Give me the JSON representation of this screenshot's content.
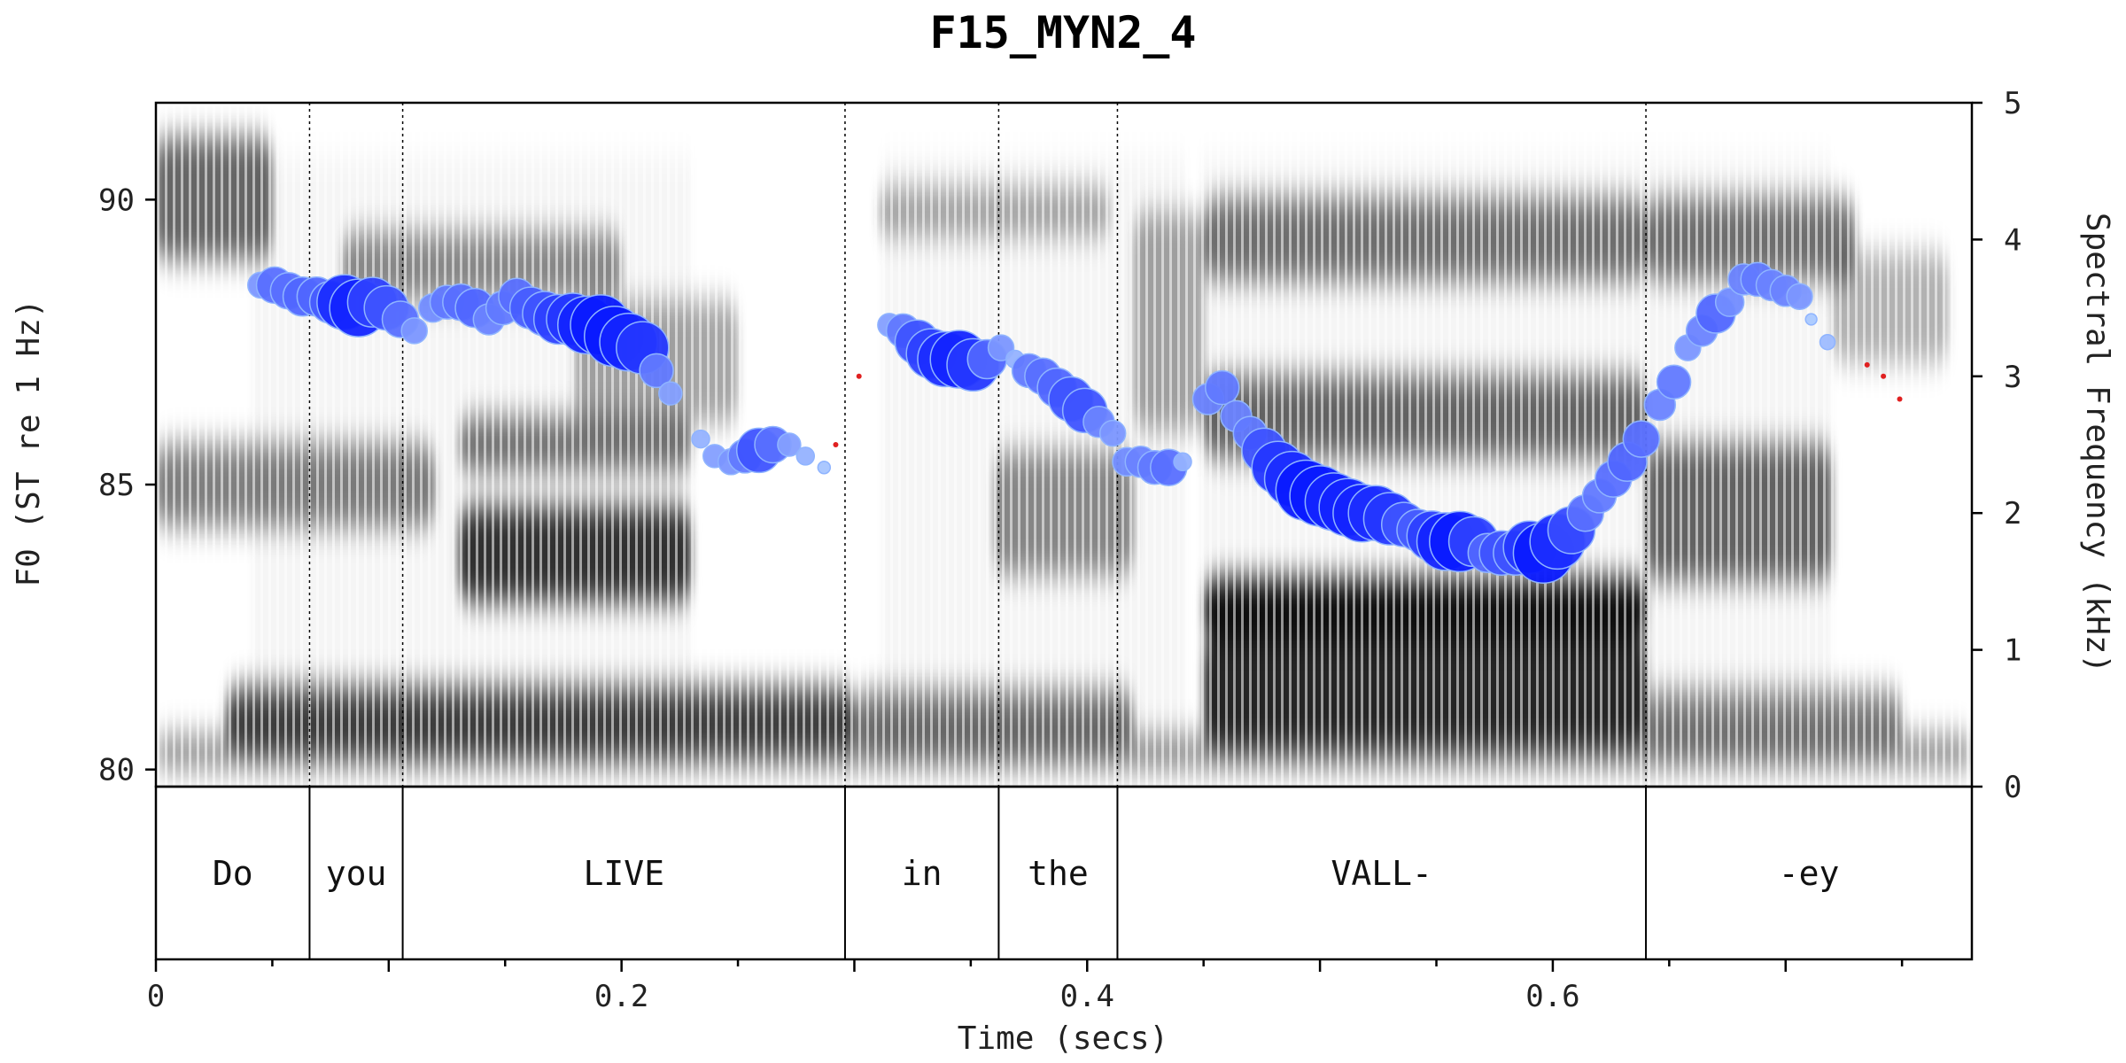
{
  "chart_data": {
    "type": "scatter",
    "title": "F15_MYN2_4",
    "xlabel": "Time (secs)",
    "ylabel_left": "F0 (ST re 1 Hz)",
    "ylabel_right": "Spectral Frequency (kHz)",
    "xlim": [
      0,
      0.78
    ],
    "ylim_left": [
      79.7,
      91.7
    ],
    "ylim_right": [
      0,
      5
    ],
    "x_ticks": [
      {
        "value": 0,
        "label": "0"
      },
      {
        "value": 0.2,
        "label": "0.2"
      },
      {
        "value": 0.4,
        "label": "0.4"
      },
      {
        "value": 0.6,
        "label": "0.6"
      }
    ],
    "y_ticks_left": [
      {
        "value": 80,
        "label": "80"
      },
      {
        "value": 85,
        "label": "85"
      },
      {
        "value": 90,
        "label": "90"
      }
    ],
    "y_ticks_right": [
      {
        "value": 0,
        "label": "0"
      },
      {
        "value": 1,
        "label": "1"
      },
      {
        "value": 2,
        "label": "2"
      },
      {
        "value": 3,
        "label": "3"
      },
      {
        "value": 4,
        "label": "4"
      },
      {
        "value": 5,
        "label": "5"
      }
    ],
    "words": [
      {
        "label": "Do",
        "start": 0.0,
        "end": 0.066
      },
      {
        "label": "you",
        "start": 0.066,
        "end": 0.106
      },
      {
        "label": "LIVE",
        "start": 0.106,
        "end": 0.296
      },
      {
        "label": "in",
        "start": 0.296,
        "end": 0.362
      },
      {
        "label": "the",
        "start": 0.362,
        "end": 0.413
      },
      {
        "label": "VALL-",
        "start": 0.413,
        "end": 0.64
      },
      {
        "label": "-ey",
        "start": 0.64,
        "end": 0.78
      }
    ],
    "colors": {
      "strong": "#0a1aff",
      "weak": "#b8d8ff",
      "unvoiced": "#e02020",
      "spectrogram": "#000000"
    },
    "f0_points": [
      [
        0.045,
        88.5,
        0.35
      ],
      [
        0.051,
        88.5,
        0.55
      ],
      [
        0.057,
        88.4,
        0.55
      ],
      [
        0.063,
        88.3,
        0.6
      ],
      [
        0.069,
        88.3,
        0.6
      ],
      [
        0.075,
        88.2,
        0.65
      ],
      [
        0.081,
        88.2,
        0.9
      ],
      [
        0.087,
        88.1,
        0.95
      ],
      [
        0.093,
        88.2,
        0.8
      ],
      [
        0.099,
        88.1,
        0.7
      ],
      [
        0.105,
        87.9,
        0.55
      ],
      [
        0.111,
        87.7,
        0.35
      ],
      [
        0.119,
        88.1,
        0.4
      ],
      [
        0.125,
        88.2,
        0.5
      ],
      [
        0.131,
        88.2,
        0.55
      ],
      [
        0.137,
        88.1,
        0.6
      ],
      [
        0.143,
        87.9,
        0.45
      ],
      [
        0.149,
        88.1,
        0.5
      ],
      [
        0.155,
        88.3,
        0.55
      ],
      [
        0.161,
        88.1,
        0.65
      ],
      [
        0.167,
        88.0,
        0.7
      ],
      [
        0.173,
        87.9,
        0.8
      ],
      [
        0.179,
        87.9,
        0.85
      ],
      [
        0.185,
        87.8,
        0.95
      ],
      [
        0.191,
        87.8,
        1.0
      ],
      [
        0.197,
        87.6,
        1.0
      ],
      [
        0.203,
        87.5,
        0.95
      ],
      [
        0.209,
        87.4,
        0.85
      ],
      [
        0.215,
        87.0,
        0.5
      ],
      [
        0.221,
        86.6,
        0.3
      ],
      [
        0.234,
        85.8,
        0.2
      ],
      [
        0.24,
        85.5,
        0.3
      ],
      [
        0.247,
        85.4,
        0.35
      ],
      [
        0.253,
        85.5,
        0.5
      ],
      [
        0.259,
        85.6,
        0.7
      ],
      [
        0.265,
        85.7,
        0.55
      ],
      [
        0.272,
        85.7,
        0.3
      ],
      [
        0.279,
        85.5,
        0.2
      ],
      [
        0.287,
        85.3,
        0.1
      ],
      [
        0.315,
        87.8,
        0.3
      ],
      [
        0.321,
        87.7,
        0.5
      ],
      [
        0.327,
        87.5,
        0.7
      ],
      [
        0.333,
        87.3,
        0.8
      ],
      [
        0.339,
        87.2,
        0.9
      ],
      [
        0.345,
        87.2,
        0.95
      ],
      [
        0.351,
        87.1,
        0.85
      ],
      [
        0.357,
        87.2,
        0.6
      ],
      [
        0.363,
        87.4,
        0.35
      ],
      [
        0.369,
        87.2,
        0.2
      ],
      [
        0.375,
        87.0,
        0.5
      ],
      [
        0.381,
        86.9,
        0.55
      ],
      [
        0.387,
        86.7,
        0.6
      ],
      [
        0.393,
        86.5,
        0.7
      ],
      [
        0.399,
        86.3,
        0.7
      ],
      [
        0.405,
        86.1,
        0.45
      ],
      [
        0.411,
        85.9,
        0.35
      ],
      [
        0.417,
        85.4,
        0.4
      ],
      [
        0.423,
        85.4,
        0.45
      ],
      [
        0.429,
        85.3,
        0.5
      ],
      [
        0.435,
        85.3,
        0.55
      ],
      [
        0.441,
        85.4,
        0.2
      ],
      [
        0.452,
        86.5,
        0.45
      ],
      [
        0.458,
        86.7,
        0.5
      ],
      [
        0.464,
        86.2,
        0.45
      ],
      [
        0.47,
        85.9,
        0.5
      ],
      [
        0.476,
        85.6,
        0.7
      ],
      [
        0.482,
        85.3,
        0.85
      ],
      [
        0.488,
        85.1,
        0.9
      ],
      [
        0.494,
        84.9,
        1.0
      ],
      [
        0.5,
        84.8,
        1.0
      ],
      [
        0.506,
        84.7,
        0.95
      ],
      [
        0.512,
        84.6,
        0.95
      ],
      [
        0.518,
        84.5,
        0.95
      ],
      [
        0.524,
        84.5,
        0.9
      ],
      [
        0.53,
        84.4,
        0.85
      ],
      [
        0.536,
        84.3,
        0.7
      ],
      [
        0.542,
        84.2,
        0.65
      ],
      [
        0.548,
        84.1,
        0.8
      ],
      [
        0.554,
        84.0,
        0.95
      ],
      [
        0.56,
        84.0,
        1.0
      ],
      [
        0.566,
        84.0,
        0.8
      ],
      [
        0.572,
        83.8,
        0.6
      ],
      [
        0.578,
        83.8,
        0.7
      ],
      [
        0.584,
        83.8,
        0.7
      ],
      [
        0.59,
        83.9,
        0.85
      ],
      [
        0.596,
        83.8,
        1.0
      ],
      [
        0.602,
        84.0,
        0.9
      ],
      [
        0.608,
        84.2,
        0.75
      ],
      [
        0.614,
        84.5,
        0.55
      ],
      [
        0.62,
        84.8,
        0.5
      ],
      [
        0.626,
        85.1,
        0.55
      ],
      [
        0.632,
        85.4,
        0.6
      ],
      [
        0.638,
        85.8,
        0.55
      ],
      [
        0.646,
        86.4,
        0.45
      ],
      [
        0.652,
        86.8,
        0.5
      ],
      [
        0.658,
        87.4,
        0.35
      ],
      [
        0.664,
        87.7,
        0.45
      ],
      [
        0.67,
        88.0,
        0.6
      ],
      [
        0.676,
        88.2,
        0.4
      ],
      [
        0.682,
        88.6,
        0.45
      ],
      [
        0.688,
        88.6,
        0.5
      ],
      [
        0.694,
        88.5,
        0.45
      ],
      [
        0.7,
        88.4,
        0.45
      ],
      [
        0.706,
        88.3,
        0.35
      ],
      [
        0.711,
        87.9,
        0.08
      ],
      [
        0.718,
        87.5,
        0.15
      ]
    ],
    "unvoiced_points": [
      [
        0.292,
        85.7
      ],
      [
        0.302,
        86.9
      ],
      [
        0.735,
        87.1
      ],
      [
        0.742,
        86.9
      ],
      [
        0.749,
        86.5
      ]
    ]
  }
}
